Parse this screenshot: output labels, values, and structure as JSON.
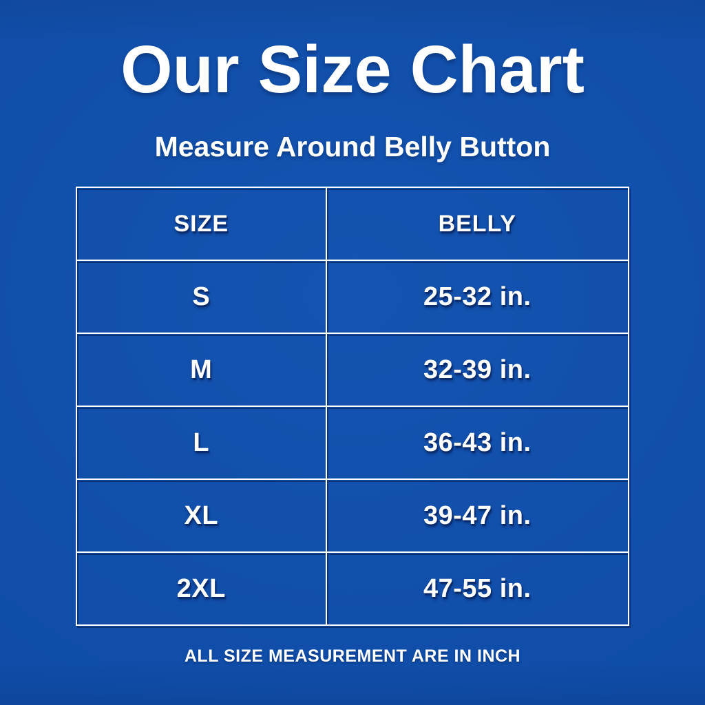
{
  "header": {
    "title": "Our Size Chart",
    "subtitle": "Measure Around Belly Button"
  },
  "table": {
    "columns": [
      "SIZE",
      "BELLY"
    ],
    "rows": [
      {
        "size": "S",
        "belly": "25-32 in."
      },
      {
        "size": "M",
        "belly": "32-39 in."
      },
      {
        "size": "L",
        "belly": "36-43 in."
      },
      {
        "size": "XL",
        "belly": "39-47 in."
      },
      {
        "size": "2XL",
        "belly": "47-55 in."
      }
    ]
  },
  "footer": {
    "note": "ALL SIZE MEASUREMENT ARE IN INCH"
  },
  "colors": {
    "background": "#0F4DA8",
    "table_border": "#FFFFFF",
    "border_shadow": "#08205A",
    "text": "#FFFFFF"
  },
  "units": "inch"
}
